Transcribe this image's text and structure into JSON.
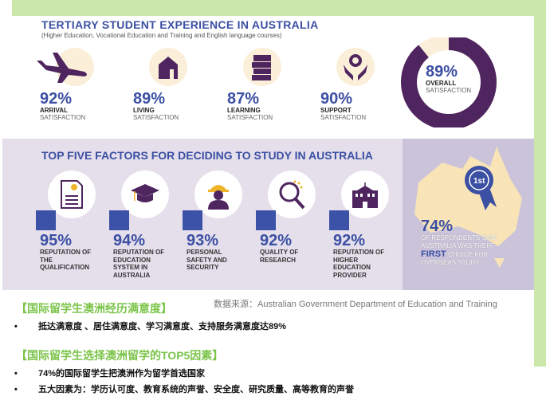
{
  "experience": {
    "title": "TERTIARY STUDENT EXPERIENCE IN AUSTRALIA",
    "subtitle": "(Higher Education, Vocational Education and Training and English language courses)",
    "stats": [
      {
        "icon": "airplane-icon",
        "value": "92%",
        "label1": "ARRIVAL",
        "label2": "SATISFACTION"
      },
      {
        "icon": "house-icon",
        "value": "89%",
        "label1": "LIVING",
        "label2": "SATISFACTION"
      },
      {
        "icon": "books-icon",
        "value": "87%",
        "label1": "LEARNING",
        "label2": "SATISFACTION"
      },
      {
        "icon": "hands-gear-icon",
        "value": "90%",
        "label1": "SUPPORT",
        "label2": "SATISFACTION"
      }
    ],
    "overall": {
      "value": "89%",
      "fraction": 0.89,
      "label1": "OVERALL",
      "label2": "SATISFACTION"
    }
  },
  "factors": {
    "title": "TOP FIVE FACTORS FOR DECIDING TO STUDY IN AUSTRALIA",
    "items": [
      {
        "icon": "certificate-icon",
        "value": "95%",
        "label": "REPUTATION OF THE QUALIFICATION"
      },
      {
        "icon": "graduation-cap-icon",
        "value": "94%",
        "label": "REPUTATION OF EDUCATION SYSTEM IN AUSTRALIA"
      },
      {
        "icon": "hard-hat-icon",
        "value": "93%",
        "label": "PERSONAL SAFETY AND SECURITY"
      },
      {
        "icon": "magnifier-icon",
        "value": "92%",
        "label": "QUALITY OF RESEARCH"
      },
      {
        "icon": "building-icon",
        "value": "92%",
        "label": "REPUTATION OF HIGHER EDUCATION PROVIDER"
      }
    ],
    "side": {
      "badge": "1st",
      "value": "74%",
      "text_pre": "OF RESPONDENTS SAID AUSTRALIA WAS THEIR ",
      "text_em": "FIRST",
      "text_post": " CHOICE FOR OVERSEAS STUDY"
    }
  },
  "source": "数据来源：Australian Government Department of Education and Training",
  "notes": [
    {
      "heading": "【国际留学生澳洲经历满意度】",
      "bullets": [
        "抵达满意度 、居住满意度、学习满意度、支持服务满意度达89%"
      ]
    },
    {
      "heading": "【国际留学生选择澳洲留学的TOP5因素】",
      "bullets": [
        "74%的国际留学生把澳洲作为留学首选国家",
        "五大因素为：学历认可度、教育系统的声誉、安全度、研究质量、高等教育的声誉"
      ]
    }
  ],
  "colors": {
    "purple": "#4f2560",
    "blue": "#3b4fa3",
    "green": "#7cc44a",
    "cream": "#fbefd9"
  }
}
